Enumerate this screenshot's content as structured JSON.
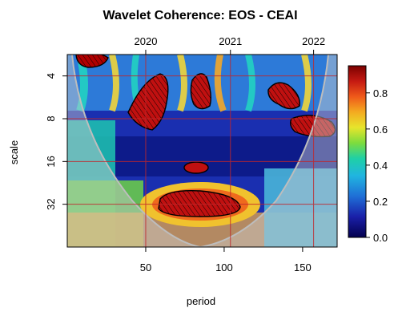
{
  "chart_data": {
    "type": "heatmap",
    "title": "Wavelet Coherence: EOS - CEAI",
    "xlabel": "period",
    "ylabel": "scale",
    "xlim": [
      0,
      172
    ],
    "ylim_log2": [
      1.5,
      6.0
    ],
    "x_ticks": [
      50,
      100,
      150
    ],
    "y_ticks": [
      4,
      8,
      16,
      32
    ],
    "top_axis": {
      "ticks": [
        {
          "label": "2020",
          "x": 50
        },
        {
          "label": "2021",
          "x": 104
        },
        {
          "label": "2022",
          "x": 157
        }
      ]
    },
    "colorbar": {
      "range": [
        0,
        0.95
      ],
      "ticks": [
        0.0,
        0.2,
        0.4,
        0.6,
        0.8
      ],
      "tick_labels": [
        "0.0",
        "0.2",
        "0.4",
        "0.6",
        "0.8"
      ]
    },
    "significant_regions": [
      {
        "name": "region-top-left",
        "x": 21,
        "scale": 2.0
      },
      {
        "name": "region-a",
        "x": 58,
        "scale": 5.0
      },
      {
        "name": "region-b",
        "x": 88,
        "scale": 4.7
      },
      {
        "name": "region-c",
        "x": 135,
        "scale": 4.6
      },
      {
        "name": "region-d",
        "x": 158,
        "scale": 7.2
      },
      {
        "name": "region-small",
        "x": 82,
        "scale": 14
      },
      {
        "name": "region-bottom",
        "x": 85,
        "scale": 28
      }
    ],
    "colors": {
      "low": "#0a0a78",
      "mid": "#20d0a0",
      "high": "#8b0000",
      "cone": "#b8b8b8"
    }
  }
}
